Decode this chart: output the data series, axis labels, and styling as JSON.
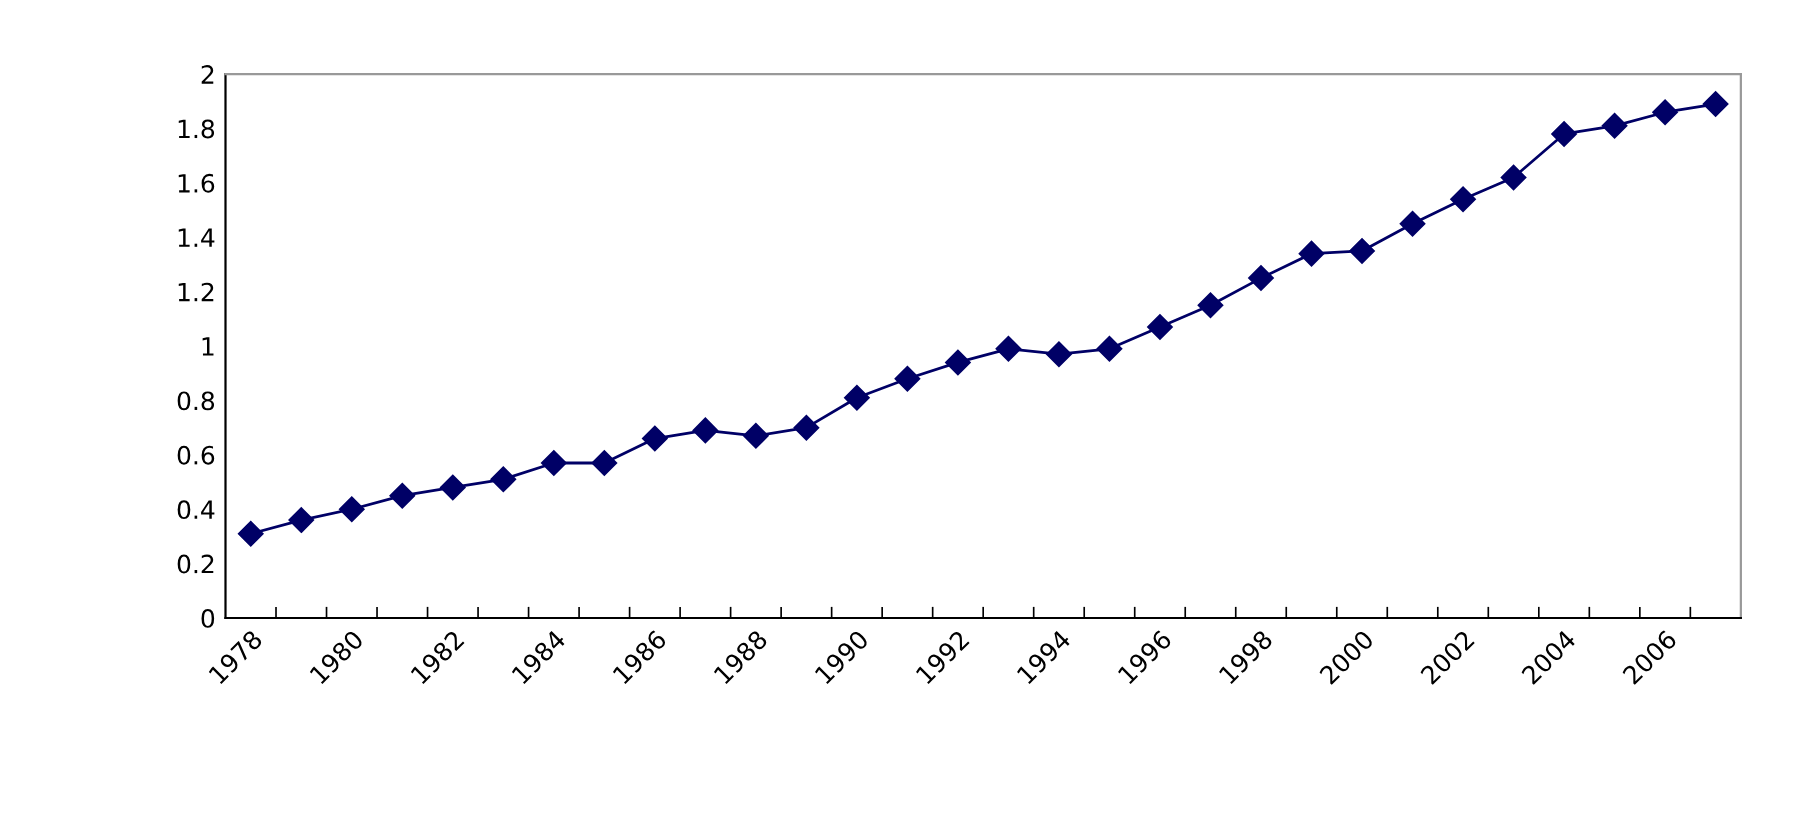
{
  "chart_data": {
    "type": "line",
    "categories": [
      "1978",
      null,
      "1980",
      null,
      "1982",
      null,
      "1984",
      null,
      "1986",
      null,
      "1988",
      null,
      "1990",
      null,
      "1992",
      null,
      "1994",
      null,
      "1996",
      null,
      "1998",
      null,
      "2000",
      null,
      "2002",
      null,
      "2004",
      null,
      "2006",
      null
    ],
    "series": [
      {
        "color": "#000066",
        "values": [
          0.31,
          0.36,
          0.4,
          0.45,
          0.48,
          0.51,
          0.57,
          0.57,
          0.66,
          0.69,
          0.67,
          0.7,
          0.81,
          0.88,
          0.94,
          0.99,
          0.97,
          0.99,
          1.07,
          1.15,
          1.25,
          1.34,
          1.35,
          1.45,
          1.54,
          1.62,
          1.78,
          1.81,
          1.86,
          1.89
        ]
      }
    ],
    "ylim": [
      0,
      2
    ],
    "yticks": [
      0,
      0.2,
      0.4,
      0.6,
      0.8,
      1,
      1.2,
      1.4,
      1.6,
      1.8,
      2
    ],
    "marker": "diamond",
    "line_style": "solid",
    "grid": false,
    "legend": false
  }
}
